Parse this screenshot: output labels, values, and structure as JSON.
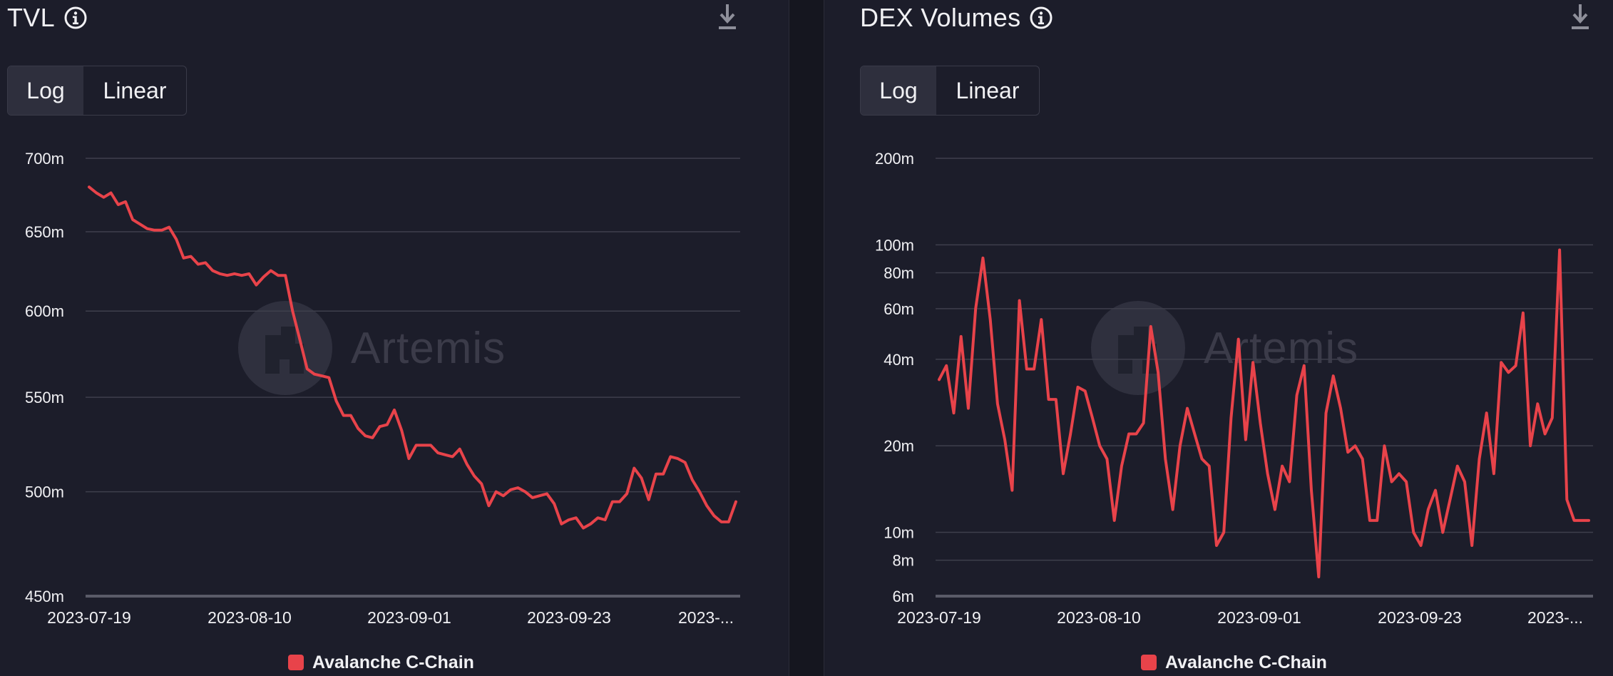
{
  "colors": {
    "background": "#1c1d2a",
    "line": "#e8434a",
    "grid": "#3e3f4c",
    "axis": "#5a5b68",
    "text": "#f1f1f4",
    "icon": "#8e8f9a"
  },
  "watermark": {
    "text": "Artemis"
  },
  "toggle": {
    "log": "Log",
    "linear": "Linear",
    "selected": "Log"
  },
  "panels": [
    {
      "title": "TVL",
      "info_icon": "info-icon",
      "download_icon": "download-icon"
    },
    {
      "title": "DEX Volumes",
      "info_icon": "info-icon",
      "download_icon": "download-icon"
    }
  ],
  "chart_data": [
    {
      "type": "line",
      "title": "TVL",
      "scale": "log",
      "x_range": [
        "2023-07-19",
        "2023-10-14"
      ],
      "x_ticks": [
        "2023-07-19",
        "2023-08-10",
        "2023-09-01",
        "2023-09-23",
        "2023-..."
      ],
      "y_ticks": [
        {
          "value": 700000000,
          "label": "700m"
        },
        {
          "value": 650000000,
          "label": "650m"
        },
        {
          "value": 600000000,
          "label": "600m"
        },
        {
          "value": 550000000,
          "label": "550m"
        },
        {
          "value": 500000000,
          "label": "500m"
        },
        {
          "value": 450000000,
          "label": "450m"
        }
      ],
      "ylim": [
        450000000,
        700000000
      ],
      "grid": true,
      "legend": "bottom-center",
      "series": [
        {
          "name": "Avalanche C-Chain",
          "color": "#e8434a",
          "values": [
            680,
            676,
            673,
            676,
            668,
            670,
            658,
            655,
            652,
            651,
            651,
            653,
            645,
            633,
            634,
            629,
            630,
            625,
            623,
            622,
            623,
            622,
            623,
            616,
            621,
            625,
            622,
            622,
            600,
            583,
            566,
            563,
            562,
            561,
            548,
            540,
            540,
            533,
            529,
            528,
            534,
            535,
            543,
            532,
            517,
            524,
            524,
            524,
            520,
            519,
            518,
            522,
            514,
            508,
            504,
            493,
            500,
            498,
            501,
            502,
            500,
            497,
            498,
            499,
            494,
            484,
            486,
            487,
            482,
            484,
            487,
            486,
            495,
            495,
            499,
            512,
            507,
            496,
            509,
            509,
            518,
            517,
            515,
            506,
            500,
            493,
            488,
            485,
            485,
            495
          ]
        }
      ]
    },
    {
      "type": "line",
      "title": "DEX Volumes",
      "scale": "log",
      "x_range": [
        "2023-07-19",
        "2023-10-14"
      ],
      "x_ticks": [
        "2023-07-19",
        "2023-08-10",
        "2023-09-01",
        "2023-09-23",
        "2023-..."
      ],
      "y_ticks": [
        {
          "value": 200000000,
          "label": "200m"
        },
        {
          "value": 100000000,
          "label": "100m"
        },
        {
          "value": 80000000,
          "label": "80m"
        },
        {
          "value": 60000000,
          "label": "60m"
        },
        {
          "value": 40000000,
          "label": "40m"
        },
        {
          "value": 20000000,
          "label": "20m"
        },
        {
          "value": 10000000,
          "label": "10m"
        },
        {
          "value": 8000000,
          "label": "8m"
        },
        {
          "value": 6000000,
          "label": "6m"
        }
      ],
      "ylim": [
        6000000,
        200000000
      ],
      "grid": true,
      "legend": "bottom-center",
      "series": [
        {
          "name": "Avalanche C-Chain",
          "color": "#e8434a",
          "values": [
            34,
            38,
            26,
            48,
            27,
            60,
            90,
            55,
            28,
            21,
            14,
            64,
            37,
            37,
            55,
            29,
            29,
            16,
            22,
            32,
            31,
            25,
            20,
            18,
            11,
            17,
            22,
            22,
            24,
            52,
            36,
            18,
            12,
            20,
            27,
            22,
            18,
            17,
            9,
            10,
            25,
            47,
            21,
            39,
            24,
            16,
            12,
            17,
            15,
            30,
            38,
            14,
            7,
            26,
            35,
            27,
            19,
            20,
            18,
            11,
            11,
            20,
            15,
            16,
            15,
            10,
            9,
            12,
            14,
            10,
            13,
            17,
            15,
            9,
            18,
            26,
            16,
            39,
            36,
            38,
            58,
            20,
            28,
            22,
            25,
            96,
            13,
            11,
            11,
            11
          ]
        }
      ]
    }
  ]
}
